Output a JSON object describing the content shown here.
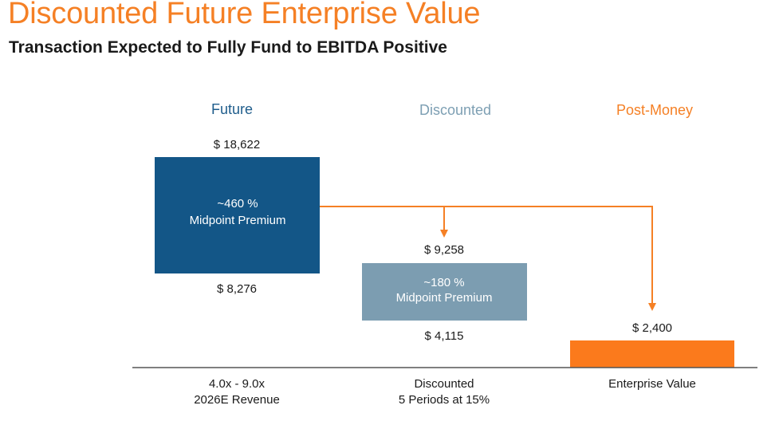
{
  "header": {
    "title": "Discounted Future Enterprise Value",
    "subtitle": "Transaction Expected to Fully Fund to EBITDA Positive"
  },
  "colors": {
    "title": "#f58025",
    "future": "#135687",
    "future_header": "#1f5d8c",
    "discounted": "#7c9db1",
    "discounted_header": "#7d9fb3",
    "post_money": "#fb7a1c",
    "arrow": "#f58025",
    "text": "#1a1a1a",
    "baseline": "#555555"
  },
  "chart_data": {
    "type": "bar",
    "unit": "$",
    "y_scale": "range bars (floating), single bar for post-money",
    "columns": [
      {
        "header": "Future",
        "high_label": "$ 18,622",
        "low_label": "$ 8,276",
        "high": 18622,
        "low": 8276,
        "inner_line1": "~460 %",
        "inner_line2": "Midpoint Premium",
        "footer_line1": "4.0x - 9.0x",
        "footer_line2": "2026E Revenue"
      },
      {
        "header": "Discounted",
        "high_label": "$ 9,258",
        "low_label": "$ 4,115",
        "high": 9258,
        "low": 4115,
        "inner_line1": "~180 %",
        "inner_line2": "Midpoint Premium",
        "footer_line1": "Discounted",
        "footer_line2": "5 Periods at 15%"
      },
      {
        "header": "Post-Money",
        "high_label": "$ 2,400",
        "high": 2400,
        "footer_line1": "Enterprise Value"
      }
    ]
  }
}
